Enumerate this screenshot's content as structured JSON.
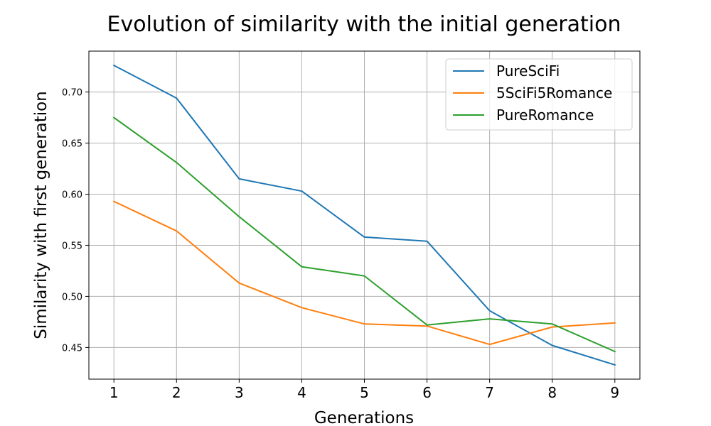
{
  "chart_data": {
    "type": "line",
    "title": "Evolution of similarity with the initial generation",
    "xlabel": "Generations",
    "ylabel": "Similarity with first generation",
    "x": [
      1,
      2,
      3,
      4,
      5,
      6,
      7,
      8,
      9
    ],
    "xlim": [
      0.6,
      9.4
    ],
    "ylim": [
      0.419,
      0.74
    ],
    "xticks": [
      "1",
      "2",
      "3",
      "4",
      "5",
      "6",
      "7",
      "8",
      "9"
    ],
    "yticks": [
      "0.45",
      "0.50",
      "0.55",
      "0.60",
      "0.65",
      "0.70"
    ],
    "grid": true,
    "legend_position": "top-right",
    "series": [
      {
        "name": "PureSciFi",
        "color": "#1f77b4",
        "values": [
          0.726,
          0.694,
          0.615,
          0.603,
          0.558,
          0.554,
          0.486,
          0.452,
          0.433
        ]
      },
      {
        "name": "5SciFi5Romance",
        "color": "#ff7f0e",
        "values": [
          0.593,
          0.564,
          0.513,
          0.489,
          0.473,
          0.471,
          0.453,
          0.47,
          0.474
        ]
      },
      {
        "name": "PureRomance",
        "color": "#2ca02c",
        "values": [
          0.675,
          0.631,
          0.578,
          0.529,
          0.52,
          0.472,
          0.478,
          0.473,
          0.446
        ]
      }
    ]
  }
}
